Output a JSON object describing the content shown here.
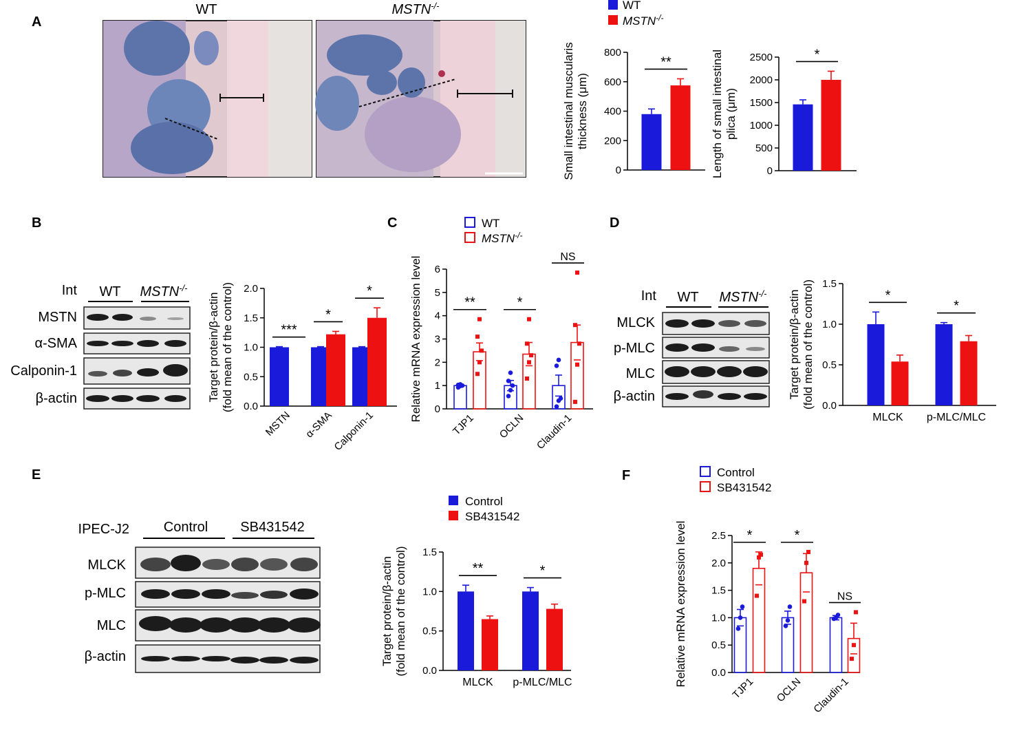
{
  "colors": {
    "wt": "#1a1adb",
    "ko": "#ee1111",
    "blot_bg": "#e8e8e8",
    "band": "#1c1c1c"
  },
  "panel_labels": [
    "A",
    "B",
    "C",
    "D",
    "E",
    "F"
  ],
  "legend_wt_ko": {
    "wt": "WT",
    "ko": "MSTN",
    "ko_sup": "-/-"
  },
  "legend_ctrl_sb": {
    "ctrl": "Control",
    "sb": "SB431542"
  },
  "panel_A": {
    "image_titles": {
      "wt": "WT",
      "ko": "MSTN",
      "ko_sup": "-/-"
    },
    "image_icons": [
      "histology-micrograph-wt",
      "histology-micrograph-mstn-ko"
    ]
  },
  "blot_B": {
    "header": "Int",
    "groups": [
      "WT",
      "MSTN"
    ],
    "group_sup": [
      "",
      "-/-"
    ],
    "rows": [
      "MSTN",
      "α-SMA",
      "Calponin-1",
      "β-actin"
    ]
  },
  "blot_D": {
    "header": "Int",
    "groups": [
      "WT",
      "MSTN"
    ],
    "group_sup": [
      "",
      "-/-"
    ],
    "rows": [
      "MLCK",
      "p-MLC",
      "MLC",
      "β-actin"
    ]
  },
  "blot_E": {
    "header": "IPEC-J2",
    "groups": [
      "Control",
      "SB431542"
    ],
    "rows": [
      "MLCK",
      "p-MLC",
      "MLC",
      "β-actin"
    ]
  },
  "chart_data": [
    {
      "id": "A1",
      "type": "bar",
      "ylabel": [
        "Small intestinal muscularis",
        "thickness (μm)"
      ],
      "ylim": [
        0,
        800
      ],
      "yticks": [
        "0",
        "200",
        "400",
        "600",
        "800"
      ],
      "series": [
        {
          "name": "WT",
          "values": [
            380
          ]
        },
        {
          "name": "MSTN-/-",
          "values": [
            575
          ]
        }
      ],
      "errors": [
        [
          35
        ],
        [
          45
        ]
      ],
      "significance": [
        "**"
      ]
    },
    {
      "id": "A2",
      "type": "bar",
      "ylabel": [
        "Length of small intestinal",
        "plica (μm)"
      ],
      "ylim": [
        0,
        2500
      ],
      "yticks": [
        "0",
        "500",
        "1000",
        "1500",
        "2000",
        "2500"
      ],
      "series": [
        {
          "name": "WT",
          "values": [
            1460
          ]
        },
        {
          "name": "MSTN-/-",
          "values": [
            2000
          ]
        }
      ],
      "errors": [
        [
          100
        ],
        [
          190
        ]
      ],
      "significance": [
        "*"
      ]
    },
    {
      "id": "B",
      "type": "bar",
      "categories": [
        "MSTN",
        "α-SMA",
        "Calponin-1"
      ],
      "ylabel": [
        "Target protein/β-actin",
        "(fold mean of the control)"
      ],
      "ylim": [
        0,
        2.0
      ],
      "yticks": [
        "0.0",
        "0.5",
        "1.0",
        "1.5",
        "2.0"
      ],
      "series": [
        {
          "name": "WT",
          "values": [
            1.0,
            1.0,
            1.0
          ]
        },
        {
          "name": "MSTN-/-",
          "values": [
            0,
            1.22,
            1.5
          ]
        }
      ],
      "errors": [
        [
          0.01,
          0.01,
          0.01
        ],
        [
          0,
          0.05,
          0.17
        ]
      ],
      "significance": [
        "***",
        "*",
        "*"
      ]
    },
    {
      "id": "C",
      "type": "bar",
      "categories": [
        "TJP1",
        "OCLN",
        "Claudin-1"
      ],
      "ylabel": [
        "Relative mRNA expression level"
      ],
      "ylim": [
        0,
        6
      ],
      "yticks": [
        "0",
        "1",
        "2",
        "3",
        "4",
        "5",
        "6"
      ],
      "series": [
        {
          "name": "WT",
          "values": [
            1.0,
            1.0,
            1.0
          ]
        },
        {
          "name": "MSTN-/-",
          "values": [
            2.45,
            2.35,
            2.85
          ]
        }
      ],
      "errors": [
        [
          0.05,
          0.22,
          0.45
        ],
        [
          0.38,
          0.5,
          0.75
        ]
      ],
      "points": [
        [
          [
            0.92,
            0.98,
            1.0,
            1.03,
            1.05
          ],
          [
            0.55,
            0.8,
            1.0,
            1.2,
            1.55
          ],
          [
            0.1,
            0.35,
            0.45,
            1.85,
            2.1
          ]
        ],
        [
          [
            1.5,
            2.0,
            2.5,
            3.1,
            3.85
          ],
          [
            1.3,
            2.0,
            2.3,
            2.8,
            3.85
          ],
          [
            0.3,
            1.9,
            2.8,
            3.6,
            5.85
          ]
        ]
      ],
      "hollow": true,
      "significance": [
        "**",
        "*",
        "NS"
      ]
    },
    {
      "id": "D",
      "type": "bar",
      "categories": [
        "MLCK",
        "p-MLC/MLC"
      ],
      "ylabel": [
        "Target protein/β-actin",
        "(fold mean of the control)"
      ],
      "ylim": [
        0,
        1.5
      ],
      "yticks": [
        "0.0",
        "0.5",
        "1.0",
        "1.5"
      ],
      "series": [
        {
          "name": "WT",
          "values": [
            1.0,
            1.0
          ]
        },
        {
          "name": "MSTN-/-",
          "values": [
            0.54,
            0.79
          ]
        }
      ],
      "errors": [
        [
          0.15,
          0.02
        ],
        [
          0.08,
          0.07
        ]
      ],
      "significance": [
        "*",
        "*"
      ]
    },
    {
      "id": "E",
      "type": "bar",
      "categories": [
        "MLCK",
        "p-MLC/MLC"
      ],
      "ylabel": [
        "Target protein/β-actin",
        "(fold mean of the control)"
      ],
      "ylim": [
        0,
        1.5
      ],
      "yticks": [
        "0.0",
        "0.5",
        "1.0",
        "1.5"
      ],
      "series": [
        {
          "name": "Control",
          "values": [
            1.0,
            1.0
          ]
        },
        {
          "name": "SB431542",
          "values": [
            0.65,
            0.78
          ]
        }
      ],
      "errors": [
        [
          0.08,
          0.05
        ],
        [
          0.04,
          0.06
        ]
      ],
      "significance": [
        "**",
        "*"
      ]
    },
    {
      "id": "F",
      "type": "bar",
      "categories": [
        "TJP1",
        "OCLN",
        "Claudin-1"
      ],
      "ylabel": [
        "Relative mRNA expression level"
      ],
      "ylim": [
        0,
        2.5
      ],
      "yticks": [
        "0.0",
        "0.5",
        "1.0",
        "1.5",
        "2.0",
        "2.5"
      ],
      "series": [
        {
          "name": "Control",
          "values": [
            1.0,
            1.0,
            1.0
          ]
        },
        {
          "name": "SB431542",
          "values": [
            1.9,
            1.82,
            0.62
          ]
        }
      ],
      "errors": [
        [
          0.15,
          0.12,
          0.04
        ],
        [
          0.3,
          0.35,
          0.28
        ]
      ],
      "points": [
        [
          [
            0.8,
            1.0,
            1.2
          ],
          [
            0.85,
            0.95,
            1.2
          ],
          [
            0.98,
            1.0,
            1.05
          ]
        ],
        [
          [
            1.4,
            2.1,
            2.15
          ],
          [
            1.3,
            2.0,
            2.2
          ],
          [
            0.25,
            0.5,
            1.1
          ]
        ]
      ],
      "hollow": true,
      "significance": [
        "*",
        "*",
        "NS"
      ]
    }
  ]
}
